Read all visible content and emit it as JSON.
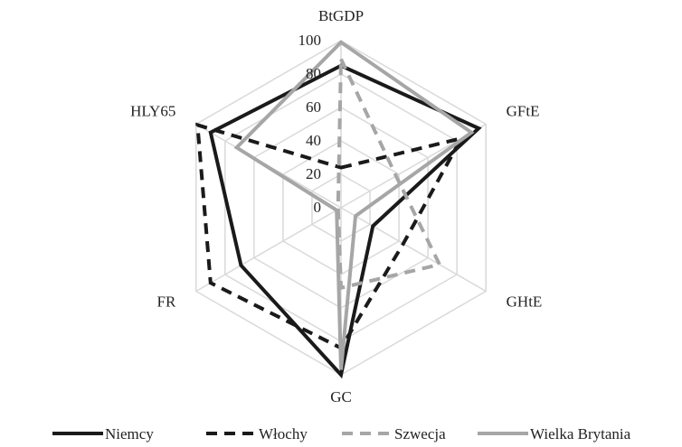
{
  "chart_data": {
    "type": "radar",
    "categories": [
      "BtGDP",
      "GFtE",
      "GHtE",
      "GC",
      "FR",
      "HLY65"
    ],
    "ylim": [
      0,
      100
    ],
    "yticks": [
      0,
      20,
      40,
      60,
      80,
      100
    ],
    "grid": true,
    "legend": "bottom",
    "series": [
      {
        "name": "Niemcy",
        "color": "#1a1a1a",
        "dash": "solid",
        "values": [
          85,
          95,
          22,
          100,
          69,
          90
        ]
      },
      {
        "name": "Włochy",
        "color": "#1a1a1a",
        "dash": "dashed",
        "values": [
          24,
          83,
          43,
          84,
          90,
          99
        ]
      },
      {
        "name": "Szwecja",
        "color": "#a6a6a6",
        "dash": "dashed",
        "values": [
          89,
          38,
          68,
          48,
          2,
          2
        ]
      },
      {
        "name": "Wielka Brytania",
        "color": "#a6a6a6",
        "dash": "solid",
        "values": [
          99,
          90,
          10,
          97,
          3,
          72
        ]
      }
    ]
  }
}
